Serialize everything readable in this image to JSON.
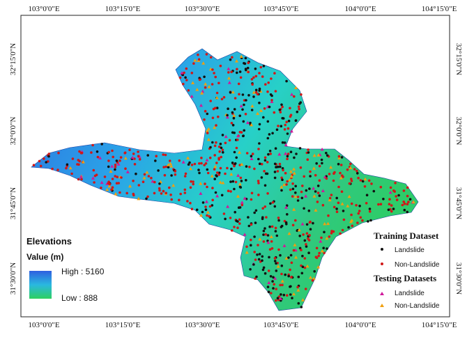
{
  "map": {
    "top_labels": [
      "103°0'0\"E",
      "103°15'0\"E",
      "103°30'0\"E",
      "103°45'0\"E",
      "104°0'0\"E",
      "104°15'0\"E"
    ],
    "bottom_labels": [
      "103°0'0\"E",
      "103°15'0\"E",
      "103°30'0\"E",
      "103°45'0\"E",
      "104°0'0\"E",
      "104°15'0\"E"
    ],
    "left_labels": [
      "32°15'0\"N",
      "32°0'0\"N",
      "31°45'0\"N",
      "31°30'0\"N"
    ],
    "right_labels": [
      "32°15'0\"N",
      "32°0'0\"N",
      "31°45'0\"N",
      "31°30'0\"N"
    ],
    "legend": {
      "title": "Elevations",
      "subtitle": "Value (m)",
      "high": "High : 5160",
      "low": "Low : 888",
      "training_title": "Training Dataset",
      "training_items": [
        "Landslide",
        "Non-Landslide"
      ],
      "testing_title": "Testing Datasets",
      "testing_items": [
        "Landslide",
        "Non-Landslide"
      ]
    }
  }
}
